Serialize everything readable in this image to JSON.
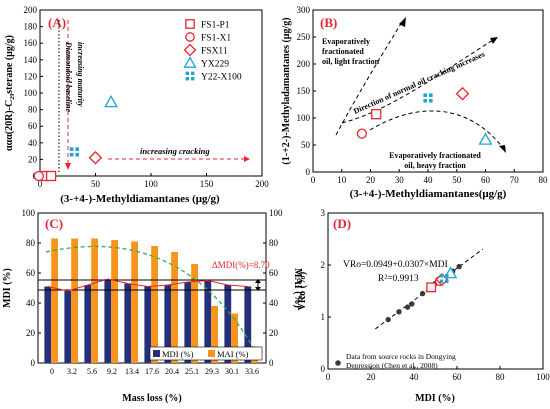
{
  "colors": {
    "red": "#e8252f",
    "cyan": "#1aa6d6",
    "orange": "#f7941d",
    "navy": "#26307a",
    "green": "#2bb24c",
    "dark": "#3a3a3a",
    "axis": "#000000"
  },
  "chart_data": [
    {
      "panel": "(A)",
      "type": "scatter",
      "xlabel": "(3-+4-)-Methyldiamantanes (μg/g)",
      "ylabel": "ααα(20R)-C₂₉sterane (μg/g)",
      "xlim": [
        0,
        200
      ],
      "ylim": [
        0,
        200
      ],
      "xticks": [
        "0",
        "50",
        "100",
        "150",
        "200"
      ],
      "yticks": [
        "0",
        "20",
        "40",
        "60",
        "80",
        "100",
        "120",
        "140",
        "160",
        "180",
        "200"
      ],
      "legend_position": "top-right",
      "series": [
        {
          "name": "FS1-P1",
          "marker": "square",
          "color": "red",
          "points": [
            [
              4,
              0
            ],
            [
              10,
              0
            ]
          ]
        },
        {
          "name": "FS1-X1",
          "marker": "circle",
          "color": "red",
          "points": [
            [
              -1,
              0
            ]
          ]
        },
        {
          "name": "FSX11",
          "marker": "diamond",
          "color": "red",
          "points": [
            [
              50,
              22
            ]
          ]
        },
        {
          "name": "YX229",
          "marker": "triangle",
          "color": "cyan",
          "points": [
            [
              64,
              89
            ]
          ]
        },
        {
          "name": "Y22-X100",
          "marker": "cross-squares",
          "color": "cyan",
          "points": [
            [
              31,
              29
            ]
          ]
        }
      ],
      "annotations": [
        "increasing maturity",
        "Diamondoid baseline",
        "increasing cracking"
      ]
    },
    {
      "panel": "(B)",
      "type": "scatter",
      "xlabel": "(3-+4-)-Methyldiamantanes(μg/g)",
      "ylabel": "(1-+2-)-Methyladamantanes (μg/g)",
      "xlim": [
        0,
        80
      ],
      "ylim": [
        0,
        300
      ],
      "xticks": [
        "0",
        "10",
        "20",
        "30",
        "40",
        "50",
        "60",
        "70",
        "80"
      ],
      "yticks": [
        "0",
        "50",
        "100",
        "150",
        "200",
        "250",
        "300"
      ],
      "series": [
        {
          "name": "FS1-P1",
          "marker": "square",
          "color": "red",
          "points": [
            [
              22,
              107
            ]
          ]
        },
        {
          "name": "FS1-X1",
          "marker": "circle",
          "color": "red",
          "points": [
            [
              17,
              71
            ]
          ]
        },
        {
          "name": "FSX11",
          "marker": "diamond",
          "color": "red",
          "points": [
            [
              52,
              145
            ]
          ]
        },
        {
          "name": "YX229",
          "marker": "triangle",
          "color": "cyan",
          "points": [
            [
              60,
              60
            ]
          ]
        },
        {
          "name": "Y22-X100",
          "marker": "cross-squares",
          "color": "cyan",
          "points": [
            [
              40,
              137
            ]
          ]
        }
      ],
      "annotations": [
        "Evaporatively fractionated oil, light fraction",
        "Direction of normal oil cracking increases",
        "Evaporatively fractionated oil, heavy fraction"
      ]
    },
    {
      "panel": "(C)",
      "type": "bar",
      "xlabel": "Mass loss (%)",
      "ylabel": "MDI (%)",
      "y2label": "MAI (%)",
      "ylim": [
        0,
        100
      ],
      "yticks": [
        "0",
        "20",
        "40",
        "60",
        "80",
        "100"
      ],
      "categories": [
        "0",
        "3.2",
        "5.6",
        "9.2",
        "13.4",
        "17.6",
        "20.4",
        "25.1",
        "29.3",
        "30.1",
        "33.6"
      ],
      "series": [
        {
          "name": "MDI (%)",
          "color": "navy",
          "values": [
            51,
            48,
            52,
            56,
            53,
            51,
            52,
            54,
            55,
            52,
            51
          ]
        },
        {
          "name": "MAI (%)",
          "color": "orange",
          "values": [
            83,
            83,
            83,
            82,
            81,
            78,
            74,
            66,
            38,
            33,
            11
          ]
        }
      ],
      "annotations": [
        "ΔMDI(%)=8.70"
      ]
    },
    {
      "panel": "(D)",
      "type": "scatter",
      "xlabel": "MDI (%)",
      "ylabel": "VRo (%)",
      "xlim": [
        0,
        100
      ],
      "ylim": [
        0,
        3
      ],
      "xticks": [
        "0",
        "20",
        "40",
        "60",
        "80",
        "100"
      ],
      "yticks": [
        "0",
        "1",
        "2",
        "3"
      ],
      "equation": "VRo=0.0949+0.0307×MDI",
      "r2": "R²=0.9913",
      "source_note_line1": "Data from source rocks in Dongying",
      "source_note_line2": "Depression (Chen et al., 2008)",
      "series": [
        {
          "name": "Data from source rocks in Dongying Depression (Chen et al., 2008)",
          "marker": "dot",
          "color": "dark",
          "points": [
            [
              28,
              0.95
            ],
            [
              33,
              1.1
            ],
            [
              37,
              1.19
            ],
            [
              39,
              1.25
            ],
            [
              44,
              1.45
            ],
            [
              48,
              1.6
            ],
            [
              50,
              1.65
            ],
            [
              53,
              1.75
            ],
            [
              58,
              1.88
            ],
            [
              61,
              1.97
            ]
          ]
        },
        {
          "name": "FS1-P1",
          "marker": "square",
          "color": "red",
          "points": [
            [
              48,
              1.57
            ]
          ]
        },
        {
          "name": "FS1-X1",
          "marker": "circle",
          "color": "red",
          "points": [
            [
              52,
              1.69
            ]
          ]
        },
        {
          "name": "FSX11",
          "marker": "diamond",
          "color": "red",
          "points": [
            [
              53,
              1.72
            ]
          ]
        },
        {
          "name": "YX229",
          "marker": "triangle",
          "color": "cyan",
          "points": [
            [
              57,
              1.84
            ]
          ]
        },
        {
          "name": "Y22-X100",
          "marker": "cross-squares",
          "color": "cyan",
          "points": [
            [
              54,
              1.74
            ]
          ]
        }
      ]
    }
  ]
}
